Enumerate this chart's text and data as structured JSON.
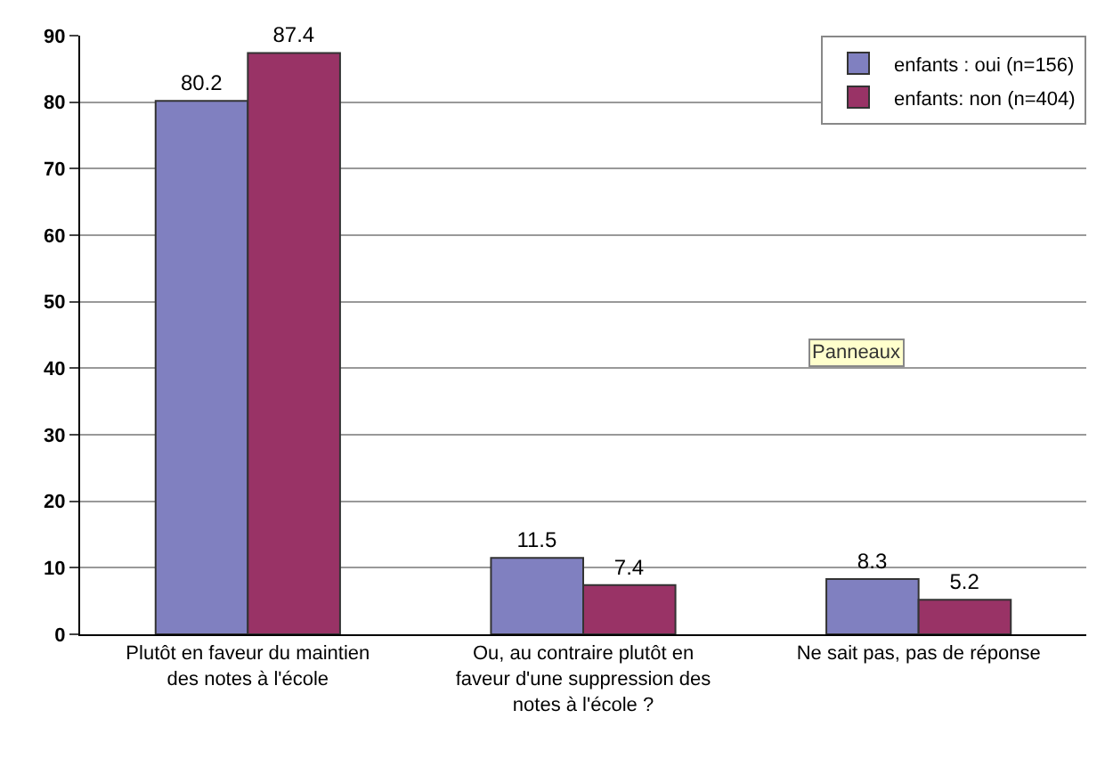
{
  "chart_data": {
    "type": "bar",
    "categories": [
      "Plutôt en faveur du maintien des notes à l'école",
      "Ou, au contraire plutôt en faveur d'une suppression des notes à l'école ?",
      "Ne sait pas, pas de réponse"
    ],
    "series": [
      {
        "name": "enfants : oui (n=156)",
        "color": "#8080c0",
        "values": [
          80.2,
          11.5,
          8.3
        ]
      },
      {
        "name": "enfants: non (n=404)",
        "color": "#993366",
        "values": [
          87.4,
          7.4,
          5.2
        ]
      }
    ],
    "ylim": [
      0,
      90
    ],
    "yticks": [
      0,
      10,
      20,
      30,
      40,
      50,
      60,
      70,
      80,
      90
    ],
    "grid": "y",
    "legend": "top right",
    "data_labels": true,
    "annotations": [
      "Panneaux"
    ]
  }
}
